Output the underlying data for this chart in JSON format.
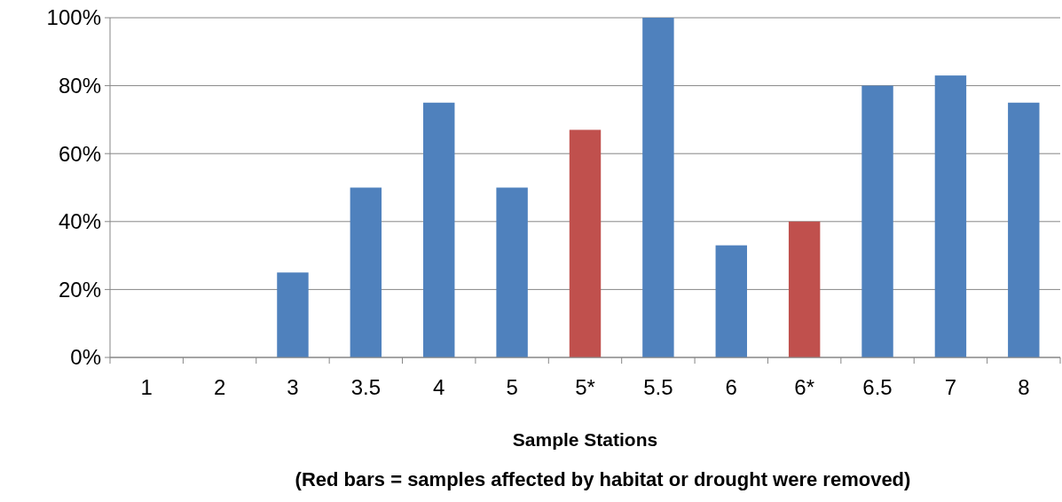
{
  "chart_data": {
    "type": "bar",
    "xlabel": "Sample Stations",
    "annotations": [
      "(Red bars = samples affected by habitat or drought were removed)"
    ],
    "categories": [
      "1",
      "2",
      "3",
      "3.5",
      "4",
      "5",
      "5*",
      "5.5",
      "6",
      "6*",
      "6.5",
      "7",
      "8"
    ],
    "values": [
      0,
      0,
      25,
      50,
      75,
      50,
      67,
      100,
      33,
      40,
      80,
      83,
      75
    ],
    "colors": [
      "#4f81bd",
      "#4f81bd",
      "#4f81bd",
      "#4f81bd",
      "#4f81bd",
      "#4f81bd",
      "#c0504d",
      "#4f81bd",
      "#4f81bd",
      "#c0504d",
      "#4f81bd",
      "#4f81bd",
      "#4f81bd"
    ],
    "ylim": [
      0,
      100
    ],
    "yticks": [
      {
        "value": 0,
        "label": "0%"
      },
      {
        "value": 20,
        "label": "20%"
      },
      {
        "value": 40,
        "label": "40%"
      },
      {
        "value": 60,
        "label": "60%"
      },
      {
        "value": 80,
        "label": "80%"
      },
      {
        "value": 100,
        "label": "100%"
      }
    ],
    "grid": "y"
  }
}
